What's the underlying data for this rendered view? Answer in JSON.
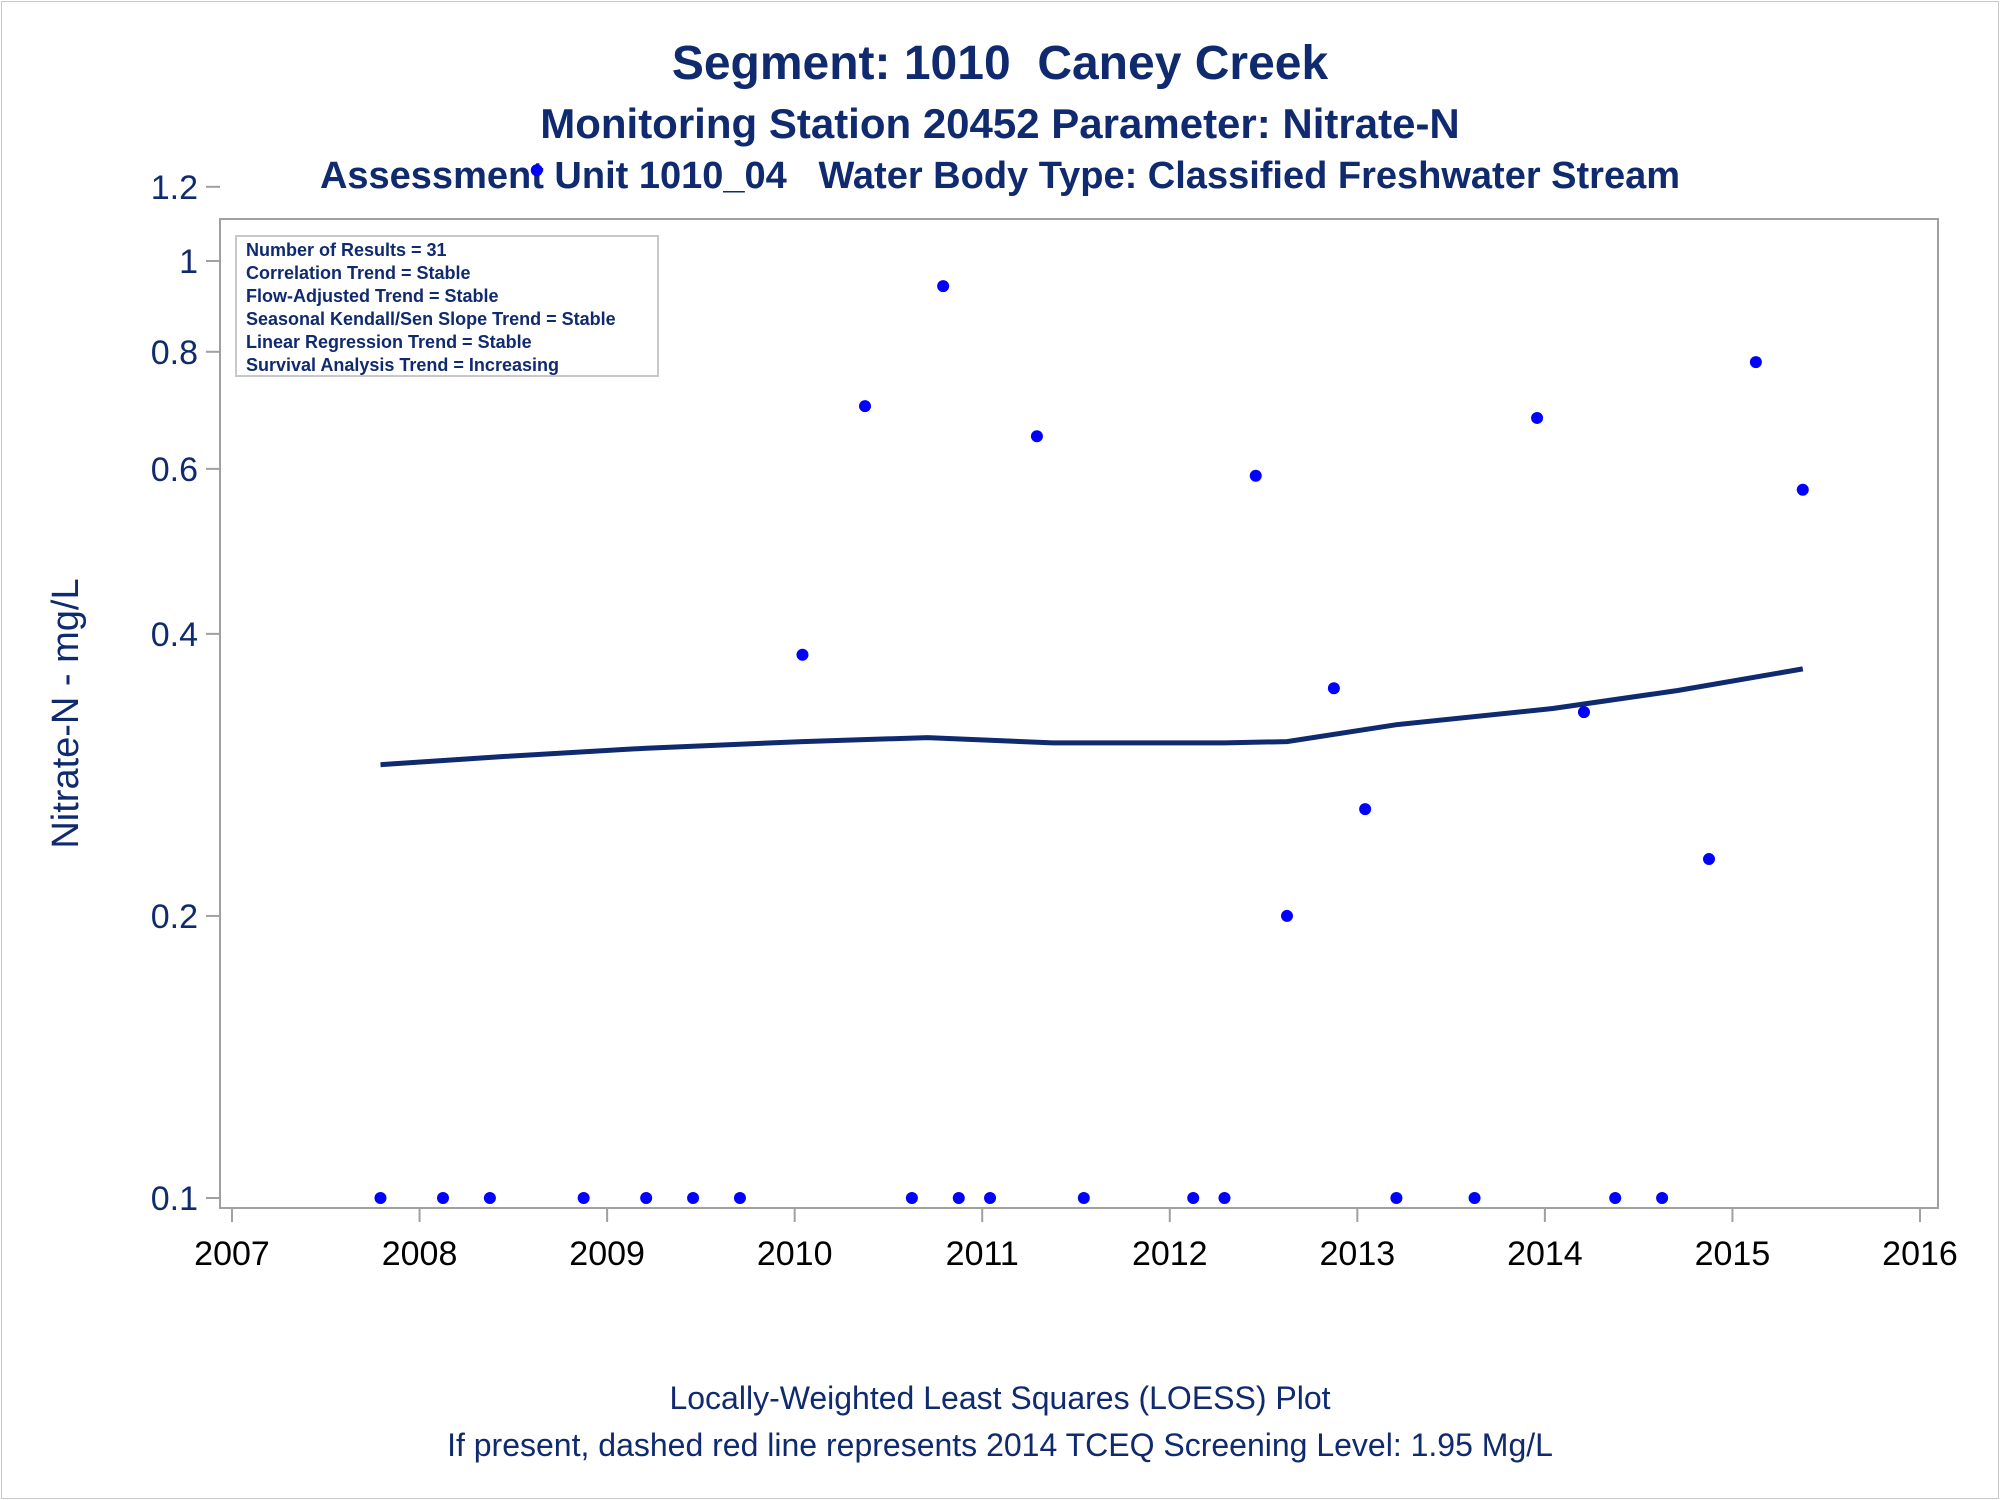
{
  "chart_data": {
    "type": "scatter",
    "title": "Segment: 1010  Caney Creek",
    "subtitle_1": "Monitoring Station 20452 Parameter: Nitrate-N",
    "subtitle_2": "Assessment Unit 1010_04   Water Body Type: Classified Freshwater Stream",
    "ylabel": "Nitrate-N - mg/L",
    "xlabel": "",
    "y_scale": "log",
    "ylim": [
      0.1,
      1.28
    ],
    "xlim": [
      2007,
      2016
    ],
    "x_ticks": [
      "2007",
      "2008",
      "2009",
      "2010",
      "2011",
      "2012",
      "2013",
      "2014",
      "2015",
      "2016"
    ],
    "y_ticks": [
      {
        "value": 0.1,
        "label": "0.1"
      },
      {
        "value": 0.2,
        "label": "0.2"
      },
      {
        "value": 0.4,
        "label": "0.4"
      },
      {
        "value": 0.6,
        "label": "0.6"
      },
      {
        "value": 0.8,
        "label": "0.8"
      },
      {
        "value": 1.0,
        "label": "1"
      },
      {
        "value": 1.2,
        "label": "1.2"
      }
    ],
    "grid": false,
    "legend_placement": "top-left",
    "colors": {
      "points": "#0000ff",
      "loess": "#0f2a6e",
      "text": "#0f2a6e",
      "frame": "#a0a0a0"
    },
    "series": [
      {
        "type": "scatter",
        "points": [
          {
            "x": "2007-10",
            "y": 0.1
          },
          {
            "x": "2008-02",
            "y": 0.1
          },
          {
            "x": "2008-05",
            "y": 0.1
          },
          {
            "x": "2008-08",
            "y": 1.25
          },
          {
            "x": "2008-11",
            "y": 0.1
          },
          {
            "x": "2009-03",
            "y": 0.1
          },
          {
            "x": "2009-06",
            "y": 0.1
          },
          {
            "x": "2009-09",
            "y": 0.1
          },
          {
            "x": "2010-01",
            "y": 0.38
          },
          {
            "x": "2010-05",
            "y": 0.7
          },
          {
            "x": "2010-08",
            "y": 0.1
          },
          {
            "x": "2010-10",
            "y": 0.94
          },
          {
            "x": "2010-11",
            "y": 0.1
          },
          {
            "x": "2011-01",
            "y": 0.1
          },
          {
            "x": "2011-04",
            "y": 0.65
          },
          {
            "x": "2011-07",
            "y": 0.1
          },
          {
            "x": "2012-02",
            "y": 0.1
          },
          {
            "x": "2012-04",
            "y": 0.1
          },
          {
            "x": "2012-06",
            "y": 0.59
          },
          {
            "x": "2012-08",
            "y": 0.2
          },
          {
            "x": "2012-11",
            "y": 0.35
          },
          {
            "x": "2013-01",
            "y": 0.26
          },
          {
            "x": "2013-03",
            "y": 0.1
          },
          {
            "x": "2013-08",
            "y": 0.1
          },
          {
            "x": "2013-12",
            "y": 0.68
          },
          {
            "x": "2014-03",
            "y": 0.33
          },
          {
            "x": "2014-05",
            "y": 0.1
          },
          {
            "x": "2014-08",
            "y": 0.1
          },
          {
            "x": "2014-11",
            "y": 0.23
          },
          {
            "x": "2015-02",
            "y": 0.78
          },
          {
            "x": "2015-05",
            "y": 0.57
          }
        ]
      },
      {
        "type": "line",
        "points": [
          {
            "x": "2007-10",
            "y": 0.29
          },
          {
            "x": "2008-06",
            "y": 0.296
          },
          {
            "x": "2009-03",
            "y": 0.302
          },
          {
            "x": "2010-01",
            "y": 0.307
          },
          {
            "x": "2010-09",
            "y": 0.31
          },
          {
            "x": "2011-05",
            "y": 0.306
          },
          {
            "x": "2012-04",
            "y": 0.306
          },
          {
            "x": "2012-08",
            "y": 0.307
          },
          {
            "x": "2013-03",
            "y": 0.32
          },
          {
            "x": "2014-01",
            "y": 0.333
          },
          {
            "x": "2014-09",
            "y": 0.348
          },
          {
            "x": "2015-05",
            "y": 0.367
          }
        ]
      }
    ],
    "stats_box": [
      "Number of Results = 31",
      "Correlation Trend = Stable",
      "Flow-Adjusted Trend = Stable",
      "Seasonal Kendall/Sen Slope Trend = Stable",
      "Linear Regression Trend = Stable",
      "Survival Analysis Trend = Increasing"
    ],
    "footnotes": [
      "Locally-Weighted Least Squares (LOESS) Plot",
      "If present, dashed red line represents 2014 TCEQ Screening Level: 1.95 Mg/L"
    ]
  }
}
